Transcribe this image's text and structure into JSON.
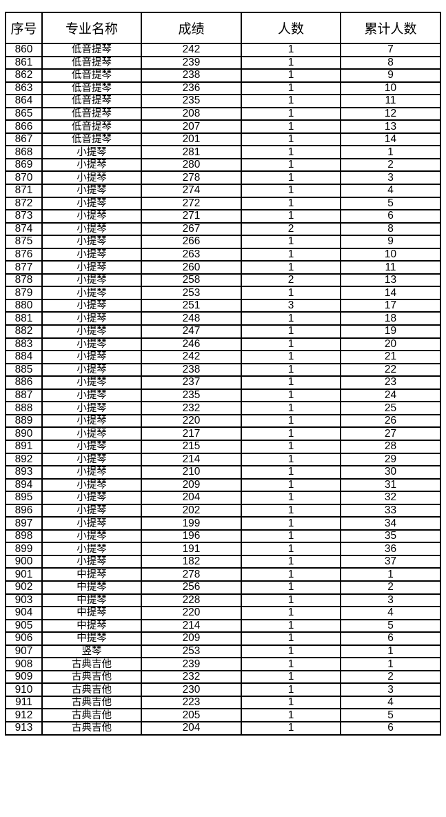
{
  "table": {
    "headers": [
      "序号",
      "专业名称",
      "成绩",
      "人数",
      "累计人数"
    ],
    "rows": [
      [
        "860",
        "低音提琴",
        "242",
        "1",
        "7"
      ],
      [
        "861",
        "低音提琴",
        "239",
        "1",
        "8"
      ],
      [
        "862",
        "低音提琴",
        "238",
        "1",
        "9"
      ],
      [
        "863",
        "低音提琴",
        "236",
        "1",
        "10"
      ],
      [
        "864",
        "低音提琴",
        "235",
        "1",
        "11"
      ],
      [
        "865",
        "低音提琴",
        "208",
        "1",
        "12"
      ],
      [
        "866",
        "低音提琴",
        "207",
        "1",
        "13"
      ],
      [
        "867",
        "低音提琴",
        "201",
        "1",
        "14"
      ],
      [
        "868",
        "小提琴",
        "281",
        "1",
        "1"
      ],
      [
        "869",
        "小提琴",
        "280",
        "1",
        "2"
      ],
      [
        "870",
        "小提琴",
        "278",
        "1",
        "3"
      ],
      [
        "871",
        "小提琴",
        "274",
        "1",
        "4"
      ],
      [
        "872",
        "小提琴",
        "272",
        "1",
        "5"
      ],
      [
        "873",
        "小提琴",
        "271",
        "1",
        "6"
      ],
      [
        "874",
        "小提琴",
        "267",
        "2",
        "8"
      ],
      [
        "875",
        "小提琴",
        "266",
        "1",
        "9"
      ],
      [
        "876",
        "小提琴",
        "263",
        "1",
        "10"
      ],
      [
        "877",
        "小提琴",
        "260",
        "1",
        "11"
      ],
      [
        "878",
        "小提琴",
        "258",
        "2",
        "13"
      ],
      [
        "879",
        "小提琴",
        "253",
        "1",
        "14"
      ],
      [
        "880",
        "小提琴",
        "251",
        "3",
        "17"
      ],
      [
        "881",
        "小提琴",
        "248",
        "1",
        "18"
      ],
      [
        "882",
        "小提琴",
        "247",
        "1",
        "19"
      ],
      [
        "883",
        "小提琴",
        "246",
        "1",
        "20"
      ],
      [
        "884",
        "小提琴",
        "242",
        "1",
        "21"
      ],
      [
        "885",
        "小提琴",
        "238",
        "1",
        "22"
      ],
      [
        "886",
        "小提琴",
        "237",
        "1",
        "23"
      ],
      [
        "887",
        "小提琴",
        "235",
        "1",
        "24"
      ],
      [
        "888",
        "小提琴",
        "232",
        "1",
        "25"
      ],
      [
        "889",
        "小提琴",
        "220",
        "1",
        "26"
      ],
      [
        "890",
        "小提琴",
        "217",
        "1",
        "27"
      ],
      [
        "891",
        "小提琴",
        "215",
        "1",
        "28"
      ],
      [
        "892",
        "小提琴",
        "214",
        "1",
        "29"
      ],
      [
        "893",
        "小提琴",
        "210",
        "1",
        "30"
      ],
      [
        "894",
        "小提琴",
        "209",
        "1",
        "31"
      ],
      [
        "895",
        "小提琴",
        "204",
        "1",
        "32"
      ],
      [
        "896",
        "小提琴",
        "202",
        "1",
        "33"
      ],
      [
        "897",
        "小提琴",
        "199",
        "1",
        "34"
      ],
      [
        "898",
        "小提琴",
        "196",
        "1",
        "35"
      ],
      [
        "899",
        "小提琴",
        "191",
        "1",
        "36"
      ],
      [
        "900",
        "小提琴",
        "182",
        "1",
        "37"
      ],
      [
        "901",
        "中提琴",
        "278",
        "1",
        "1"
      ],
      [
        "902",
        "中提琴",
        "256",
        "1",
        "2"
      ],
      [
        "903",
        "中提琴",
        "228",
        "1",
        "3"
      ],
      [
        "904",
        "中提琴",
        "220",
        "1",
        "4"
      ],
      [
        "905",
        "中提琴",
        "214",
        "1",
        "5"
      ],
      [
        "906",
        "中提琴",
        "209",
        "1",
        "6"
      ],
      [
        "907",
        "竖琴",
        "253",
        "1",
        "1"
      ],
      [
        "908",
        "古典吉他",
        "239",
        "1",
        "1"
      ],
      [
        "909",
        "古典吉他",
        "232",
        "1",
        "2"
      ],
      [
        "910",
        "古典吉他",
        "230",
        "1",
        "3"
      ],
      [
        "911",
        "古典吉他",
        "223",
        "1",
        "4"
      ],
      [
        "912",
        "古典吉他",
        "205",
        "1",
        "5"
      ],
      [
        "913",
        "古典吉他",
        "204",
        "1",
        "6"
      ]
    ]
  }
}
